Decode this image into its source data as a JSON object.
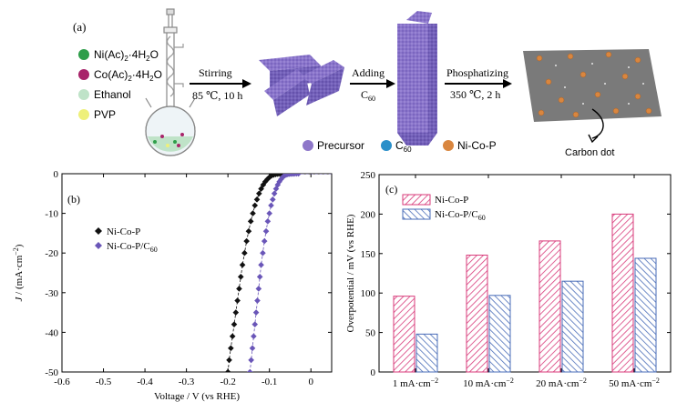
{
  "scheme": {
    "panel_label": "(a)",
    "reagents": [
      {
        "base": "Ni(Ac)",
        "sub": "2",
        "rest": "·4H",
        "sub2": "2",
        "tail": "O",
        "color": "#2e9e4a"
      },
      {
        "base": "Co(Ac)",
        "sub": "2",
        "rest": "·4H",
        "sub2": "2",
        "tail": "O",
        "color": "#a8246a"
      },
      {
        "base": "Ethanol",
        "sub": "",
        "rest": "",
        "sub2": "",
        "tail": "",
        "color": "#bfe3c8"
      },
      {
        "base": "PVP",
        "sub": "",
        "rest": "",
        "sub2": "",
        "tail": "",
        "color": "#eef07a"
      }
    ],
    "step1": {
      "top": "Stirring",
      "bottom": "85 ℃, 10 h"
    },
    "step2": {
      "top": "Adding",
      "bottom_base": "C",
      "bottom_sub": "60"
    },
    "step3": {
      "top": "Phosphatizing",
      "bottom": "350 ℃, 2 h"
    },
    "legend": [
      {
        "label": "Precursor",
        "sub": "",
        "color": "#8e77c9"
      },
      {
        "label": "C",
        "sub": "60",
        "color": "#2a8fc9"
      },
      {
        "label": "Ni-Co-P",
        "sub": "",
        "color": "#d9863f"
      }
    ],
    "carbon_dot_label": "Carbon dot",
    "colors": {
      "precursor": "#8e77c9",
      "c60": "#2a8fc9",
      "nicop": "#d9863f",
      "sheet": "#7a7a7a"
    }
  },
  "chart_data": [
    {
      "type": "scatter",
      "panel_label": "(b)",
      "xlabel": "Voltage / V (vs RHE)",
      "ylabel_italic": "J",
      "ylabel_rest": " / (mA·cm",
      "ylabel_sup": "−2",
      "ylabel_end": ")",
      "xlim": [
        -0.6,
        0.05
      ],
      "ylim": [
        -50,
        0
      ],
      "xticks": [
        -0.6,
        -0.5,
        -0.4,
        -0.3,
        -0.2,
        -0.1,
        0.0
      ],
      "xtick_labels": [
        "-0.6",
        "-0.5",
        "-0.4",
        "-0.3",
        "-0.2",
        "-0.1",
        "0"
      ],
      "yticks": [
        0,
        -10,
        -20,
        -30,
        -40,
        -50
      ],
      "ytick_labels": [
        "0",
        "-10",
        "-20",
        "-30",
        "-40",
        "-50"
      ],
      "legend_position": "upper-left",
      "series": [
        {
          "name": "Ni-Co-P",
          "name_sub": "",
          "color": "#111111",
          "marker": "diamond",
          "x": [
            -0.2,
            -0.197,
            -0.193,
            -0.189,
            -0.185,
            -0.181,
            -0.177,
            -0.173,
            -0.169,
            -0.165,
            -0.16,
            -0.155,
            -0.15,
            -0.145,
            -0.14,
            -0.135,
            -0.13,
            -0.125,
            -0.12,
            -0.115,
            -0.11,
            -0.105,
            -0.1,
            -0.095,
            -0.09,
            -0.085,
            -0.08,
            -0.075,
            -0.07,
            -0.065,
            -0.06,
            -0.055
          ],
          "y": [
            -50.0,
            -47.0,
            -44.0,
            -41.0,
            -38.0,
            -35.0,
            -32.0,
            -29.0,
            -26.0,
            -23.0,
            -20.0,
            -17.0,
            -14.5,
            -12.0,
            -10.0,
            -8.0,
            -6.5,
            -5.0,
            -3.8,
            -2.8,
            -2.0,
            -1.4,
            -0.9,
            -0.5,
            -0.3,
            -0.15,
            -0.08,
            -0.04,
            -0.02,
            -0.01,
            0.0,
            0.0
          ]
        },
        {
          "name": "Ni-Co-P/C",
          "name_sub": "60",
          "color": "#6a56b8",
          "marker": "diamond",
          "x": [
            -0.147,
            -0.144,
            -0.141,
            -0.138,
            -0.135,
            -0.132,
            -0.129,
            -0.126,
            -0.123,
            -0.12,
            -0.116,
            -0.112,
            -0.108,
            -0.104,
            -0.1,
            -0.096,
            -0.092,
            -0.088,
            -0.084,
            -0.08,
            -0.076,
            -0.072,
            -0.068,
            -0.064,
            -0.06,
            -0.056,
            -0.052,
            -0.048,
            -0.044,
            -0.04,
            -0.035,
            -0.03
          ],
          "y": [
            -50.0,
            -47.0,
            -44.0,
            -41.0,
            -38.0,
            -35.0,
            -32.0,
            -29.0,
            -26.0,
            -23.0,
            -20.0,
            -17.0,
            -14.5,
            -12.0,
            -10.0,
            -8.0,
            -6.5,
            -5.0,
            -3.8,
            -2.8,
            -2.0,
            -1.4,
            -0.9,
            -0.5,
            -0.3,
            -0.15,
            -0.08,
            -0.04,
            -0.02,
            -0.01,
            0.0,
            0.0
          ]
        }
      ],
      "dashed_curves": [
        {
          "color": "#111111",
          "x_start": -0.203,
          "x_end": 0.05
        },
        {
          "color": "#6a56b8",
          "x_start": -0.15,
          "x_end": 0.05
        }
      ]
    },
    {
      "type": "bar",
      "panel_label": "(c)",
      "ylabel": "Overpotential / mV (vs RHE)",
      "ylim": [
        0,
        250
      ],
      "yticks": [
        0,
        50,
        100,
        150,
        200,
        250
      ],
      "categories": [
        {
          "base": "1 mA·cm",
          "sup": "−2"
        },
        {
          "base": "10 mA·cm",
          "sup": "−2"
        },
        {
          "base": "20 mA·cm",
          "sup": "−2"
        },
        {
          "base": "50 mA·cm",
          "sup": "−2"
        }
      ],
      "legend_position": "upper-left",
      "series": [
        {
          "name": "Ni-Co-P",
          "name_sub": "",
          "color": "#d83a7a",
          "hatch": "diagonal",
          "values": [
            96,
            148,
            166,
            200
          ]
        },
        {
          "name": "Ni-Co-P/C",
          "name_sub": "60",
          "color": "#4a6db8",
          "hatch": "diagonal",
          "values": [
            48,
            97,
            115,
            144
          ]
        }
      ]
    }
  ]
}
